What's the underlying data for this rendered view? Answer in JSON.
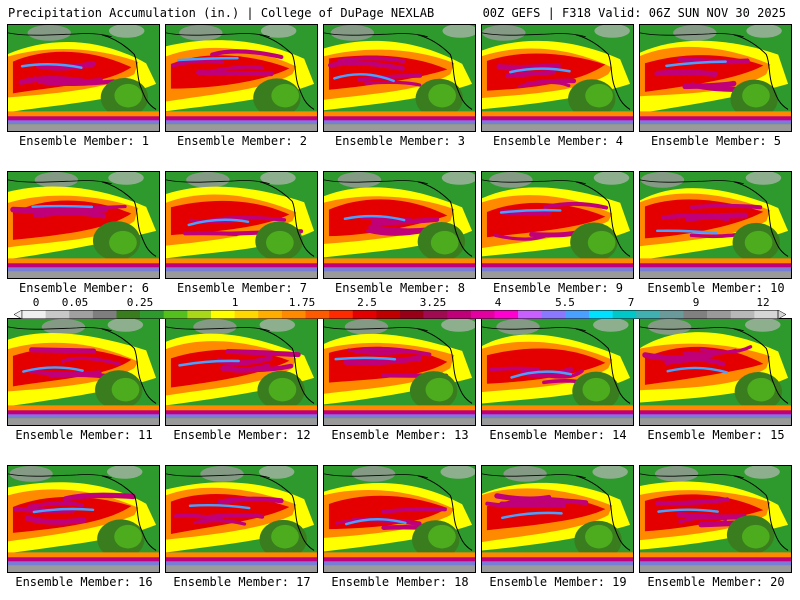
{
  "header": {
    "left": "Precipitation Accumulation (in.) | College of DuPage NEXLAB",
    "right": "00Z GEFS | F318 Valid: 06Z SUN NOV 30 2025"
  },
  "members": [
    "Ensemble Member: 1",
    "Ensemble Member: 2",
    "Ensemble Member: 3",
    "Ensemble Member: 4",
    "Ensemble Member: 5",
    "Ensemble Member: 6",
    "Ensemble Member: 7",
    "Ensemble Member: 8",
    "Ensemble Member: 9",
    "Ensemble Member: 10",
    "Ensemble Member: 11",
    "Ensemble Member: 12",
    "Ensemble Member: 13",
    "Ensemble Member: 14",
    "Ensemble Member: 15",
    "Ensemble Member: 16",
    "Ensemble Member: 17",
    "Ensemble Member: 18",
    "Ensemble Member: 19",
    "Ensemble Member: 20"
  ],
  "colorbar": {
    "tick_labels": [
      "0",
      "0.05",
      "0.25",
      "1",
      "1.75",
      "2.5",
      "3.25",
      "4",
      "5.5",
      "7",
      "9",
      "12"
    ],
    "colors": [
      "#f0f0f0",
      "#c8c8c8",
      "#a0a0a0",
      "#7e7e7e",
      "#3a7d1e",
      "#2e9a2e",
      "#54c01e",
      "#a8d818",
      "#ffff00",
      "#ffd800",
      "#ffae00",
      "#ff8a00",
      "#ff5a00",
      "#ff2a00",
      "#e40000",
      "#c00000",
      "#980018",
      "#a00a50",
      "#c00078",
      "#e400a0",
      "#ff00d0",
      "#c860ff",
      "#8a78ff",
      "#4aa0ff",
      "#00e0ff",
      "#00c8c8",
      "#40b0b0",
      "#6a9a9a",
      "#808080",
      "#9a9a9a",
      "#b8b8b8",
      "#d6d6d6"
    ]
  }
}
